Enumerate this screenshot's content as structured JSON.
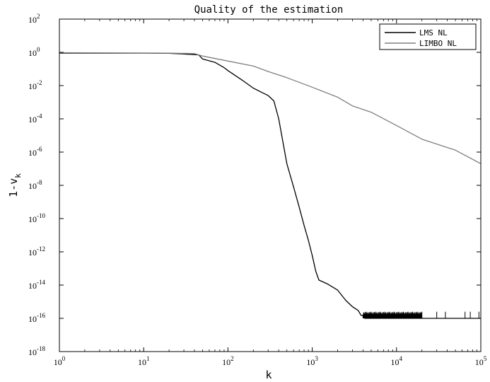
{
  "chart_data": {
    "type": "line",
    "title": "Quality of the estimation",
    "xlabel": "k",
    "ylabel": {
      "base": "1-v",
      "sub": "k"
    },
    "x_scale": "log",
    "y_scale": "log",
    "xlim": [
      1,
      100000
    ],
    "ylim": [
      1e-18,
      100
    ],
    "x_ticks": [
      {
        "base": "10",
        "exp": "0"
      },
      {
        "base": "10",
        "exp": "1"
      },
      {
        "base": "10",
        "exp": "2"
      },
      {
        "base": "10",
        "exp": "3"
      },
      {
        "base": "10",
        "exp": "4"
      },
      {
        "base": "10",
        "exp": "5"
      }
    ],
    "y_ticks": [
      {
        "base": "10",
        "exp": "2"
      },
      {
        "base": "10",
        "exp": "0"
      },
      {
        "base": "10",
        "exp": "-2"
      },
      {
        "base": "10",
        "exp": "-4"
      },
      {
        "base": "10",
        "exp": "-6"
      },
      {
        "base": "10",
        "exp": "-8"
      },
      {
        "base": "10",
        "exp": "-10"
      },
      {
        "base": "10",
        "exp": "-12"
      },
      {
        "base": "10",
        "exp": "-14"
      },
      {
        "base": "10",
        "exp": "-16"
      },
      {
        "base": "10",
        "exp": "-18"
      }
    ],
    "grid": false,
    "legend_position": "top-right",
    "series": [
      {
        "name": "LMS NL",
        "color": "#000000",
        "x": [
          1,
          10,
          20,
          30,
          45,
          50,
          70,
          90,
          100,
          150,
          200,
          250,
          300,
          350,
          400,
          500,
          600,
          700,
          800,
          900,
          1000,
          1100,
          1200,
          1500,
          2000,
          2500,
          3000,
          3500,
          3800,
          4000,
          4200,
          5000,
          10000,
          20000,
          50000,
          100000
        ],
        "y": [
          0.9,
          0.9,
          0.88,
          0.8,
          0.7,
          0.4,
          0.25,
          0.12,
          0.08,
          0.02,
          0.007,
          0.004,
          0.0025,
          0.0012,
          0.0001,
          2e-07,
          8e-09,
          5e-10,
          4e-11,
          5e-12,
          6e-13,
          7e-14,
          2e-14,
          1.2e-14,
          5e-15,
          1.2e-15,
          5e-16,
          3e-16,
          1.5e-16,
          1.5e-16,
          1e-16,
          1e-16,
          1e-16,
          1e-16,
          1e-16,
          1e-16
        ]
      },
      {
        "name": "LIMBO NL",
        "color": "#7f7f7f",
        "x": [
          1,
          10,
          20,
          40,
          50,
          100,
          200,
          300,
          500,
          1000,
          2000,
          3000,
          5000,
          10000,
          20000,
          50000,
          100000
        ],
        "y": [
          0.95,
          0.92,
          0.9,
          0.85,
          0.6,
          0.3,
          0.15,
          0.07,
          0.03,
          0.008,
          0.002,
          0.0006,
          0.00025,
          4e-05,
          6e-06,
          1.3e-06,
          2e-07
        ]
      }
    ],
    "noise_floor": {
      "series": "LMS NL",
      "x_range": [
        4000,
        20000
      ],
      "y_low": 1e-16,
      "y_high": 2.5e-16
    }
  }
}
